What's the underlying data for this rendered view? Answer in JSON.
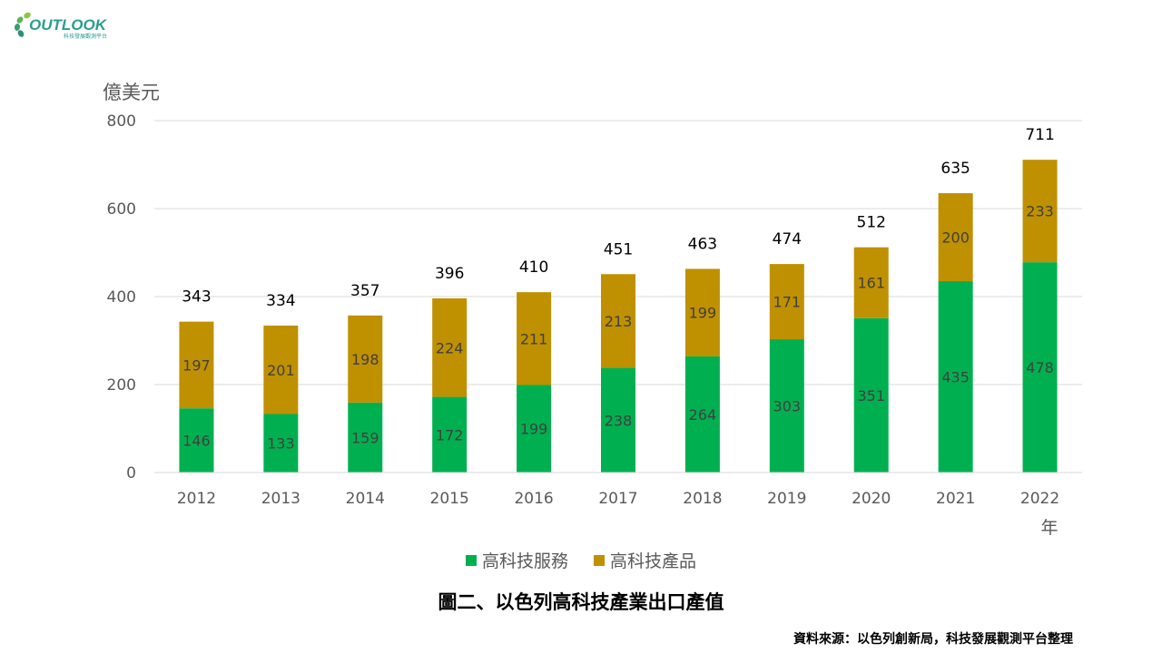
{
  "logo": {
    "text": "OUTLOOK",
    "subtext": "科技發展觀測平台"
  },
  "chart_data": {
    "type": "bar",
    "stacked": true,
    "ylabel": "億美元",
    "xlabel": "年",
    "ylim": [
      0,
      800
    ],
    "yticks": [
      0,
      200,
      400,
      600,
      800
    ],
    "grid": true,
    "legend_position": "bottom",
    "categories": [
      "2012",
      "2013",
      "2014",
      "2015",
      "2016",
      "2017",
      "2018",
      "2019",
      "2020",
      "2021",
      "2022"
    ],
    "series": [
      {
        "name": "高科技服務",
        "color": "#00B050",
        "values": [
          146,
          133,
          159,
          172,
          199,
          238,
          264,
          303,
          351,
          435,
          478
        ]
      },
      {
        "name": "高科技產品",
        "color": "#BF9000",
        "values": [
          197,
          201,
          198,
          224,
          211,
          213,
          199,
          171,
          161,
          200,
          233
        ]
      }
    ],
    "totals": [
      343,
      334,
      357,
      396,
      410,
      451,
      463,
      474,
      512,
      635,
      711
    ]
  },
  "caption": "圖二、以色列高科技產業出口產值",
  "source": "資料來源：以色列創新局，科技發展觀測平台整理"
}
